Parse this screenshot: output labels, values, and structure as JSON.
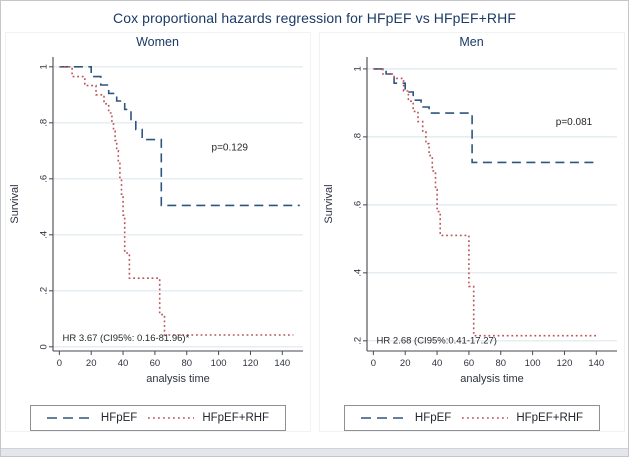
{
  "header": {
    "title": "Cox proportional hazards regression for HFpEF vs HFpEF+RHF"
  },
  "chart_data": {
    "type": "line",
    "subtype": "kaplan-meier-step",
    "xlabel": "analysis time",
    "ylabel": "Survival",
    "grid": "horizontal-only",
    "legend_position": "bottom-box-per-panel",
    "colors": {
      "hfpef_line": "#2e5580",
      "hfpef_rhf_line": "#bb5459",
      "gridline": "#dde9ee",
      "axis": "#47474f",
      "title_navy": "#1b3a66"
    },
    "panels": [
      {
        "title": "Women",
        "xlim": [
          -4,
          153
        ],
        "ylim": [
          -0.015,
          1.035
        ],
        "xticks": [
          0,
          20,
          40,
          60,
          80,
          100,
          120,
          140
        ],
        "yticks": [
          0,
          0.2,
          0.4,
          0.6,
          0.8,
          1
        ],
        "ytick_labels": [
          "0",
          ".2",
          ".4",
          ".6",
          ".8",
          "1"
        ],
        "p_label": {
          "text": "p=0.129",
          "x": 107,
          "y": 0.71
        },
        "hr_label": {
          "text": "HR 3.67 (CI95%: 0.16-81.96)*",
          "x": 2,
          "y": 0.03
        },
        "series": [
          {
            "name": "HFpEF",
            "style": "dashed",
            "color": "#2e5580",
            "steps": [
              [
                0,
                1
              ],
              [
                20,
                0.965
              ],
              [
                26,
                0.935
              ],
              [
                31,
                0.905
              ],
              [
                36,
                0.878
              ],
              [
                41,
                0.848
              ],
              [
                45,
                0.812
              ],
              [
                48,
                0.776
              ],
              [
                52,
                0.74
              ],
              [
                64,
                0.505
              ]
            ],
            "end": 151
          },
          {
            "name": "HFpEF+RHF",
            "style": "dotted",
            "color": "#bb5459",
            "steps": [
              [
                0,
                1
              ],
              [
                8,
                0.965
              ],
              [
                16,
                0.933
              ],
              [
                23,
                0.9
              ],
              [
                28,
                0.868
              ],
              [
                31,
                0.835
              ],
              [
                33,
                0.803
              ],
              [
                34,
                0.77
              ],
              [
                35,
                0.737
              ],
              [
                36,
                0.7
              ],
              [
                37,
                0.655
              ],
              [
                38,
                0.6
              ],
              [
                39,
                0.545
              ],
              [
                40,
                0.47
              ],
              [
                41,
                0.335
              ],
              [
                44,
                0.245
              ],
              [
                63,
                0.115
              ],
              [
                66,
                0.042
              ]
            ],
            "end": 147
          }
        ]
      },
      {
        "title": "Men",
        "xlim": [
          -4,
          153
        ],
        "ylim": [
          0.17,
          1.035
        ],
        "xticks": [
          0,
          20,
          40,
          60,
          80,
          100,
          120,
          140
        ],
        "yticks": [
          0.2,
          0.4,
          0.6,
          0.8,
          1
        ],
        "ytick_labels": [
          ".2",
          ".4",
          ".6",
          ".8",
          "1"
        ],
        "p_label": {
          "text": "p=0.081",
          "x": 126,
          "y": 0.843
        },
        "hr_label": {
          "text": "HR 2.68 (CI95%:0.41-17.27)",
          "x": 2,
          "y": 0.2
        },
        "series": [
          {
            "name": "HFpEF",
            "style": "dashed",
            "color": "#2e5580",
            "steps": [
              [
                0,
                1
              ],
              [
                8,
                0.985
              ],
              [
                13,
                0.958
              ],
              [
                20,
                0.932
              ],
              [
                25,
                0.908
              ],
              [
                30,
                0.888
              ],
              [
                35,
                0.87
              ],
              [
                62,
                0.725
              ]
            ],
            "end": 140
          },
          {
            "name": "HFpEF+RHF",
            "style": "dotted",
            "color": "#bb5459",
            "steps": [
              [
                0,
                1
              ],
              [
                6,
                0.985
              ],
              [
                13,
                0.972
              ],
              [
                19,
                0.935
              ],
              [
                22,
                0.905
              ],
              [
                25,
                0.875
              ],
              [
                28,
                0.845
              ],
              [
                31,
                0.815
              ],
              [
                33,
                0.78
              ],
              [
                35,
                0.745
              ],
              [
                37,
                0.7
              ],
              [
                39,
                0.645
              ],
              [
                40,
                0.58
              ],
              [
                42,
                0.51
              ],
              [
                60,
                0.36
              ],
              [
                63,
                0.215
              ]
            ],
            "end": 141
          }
        ]
      }
    ]
  }
}
